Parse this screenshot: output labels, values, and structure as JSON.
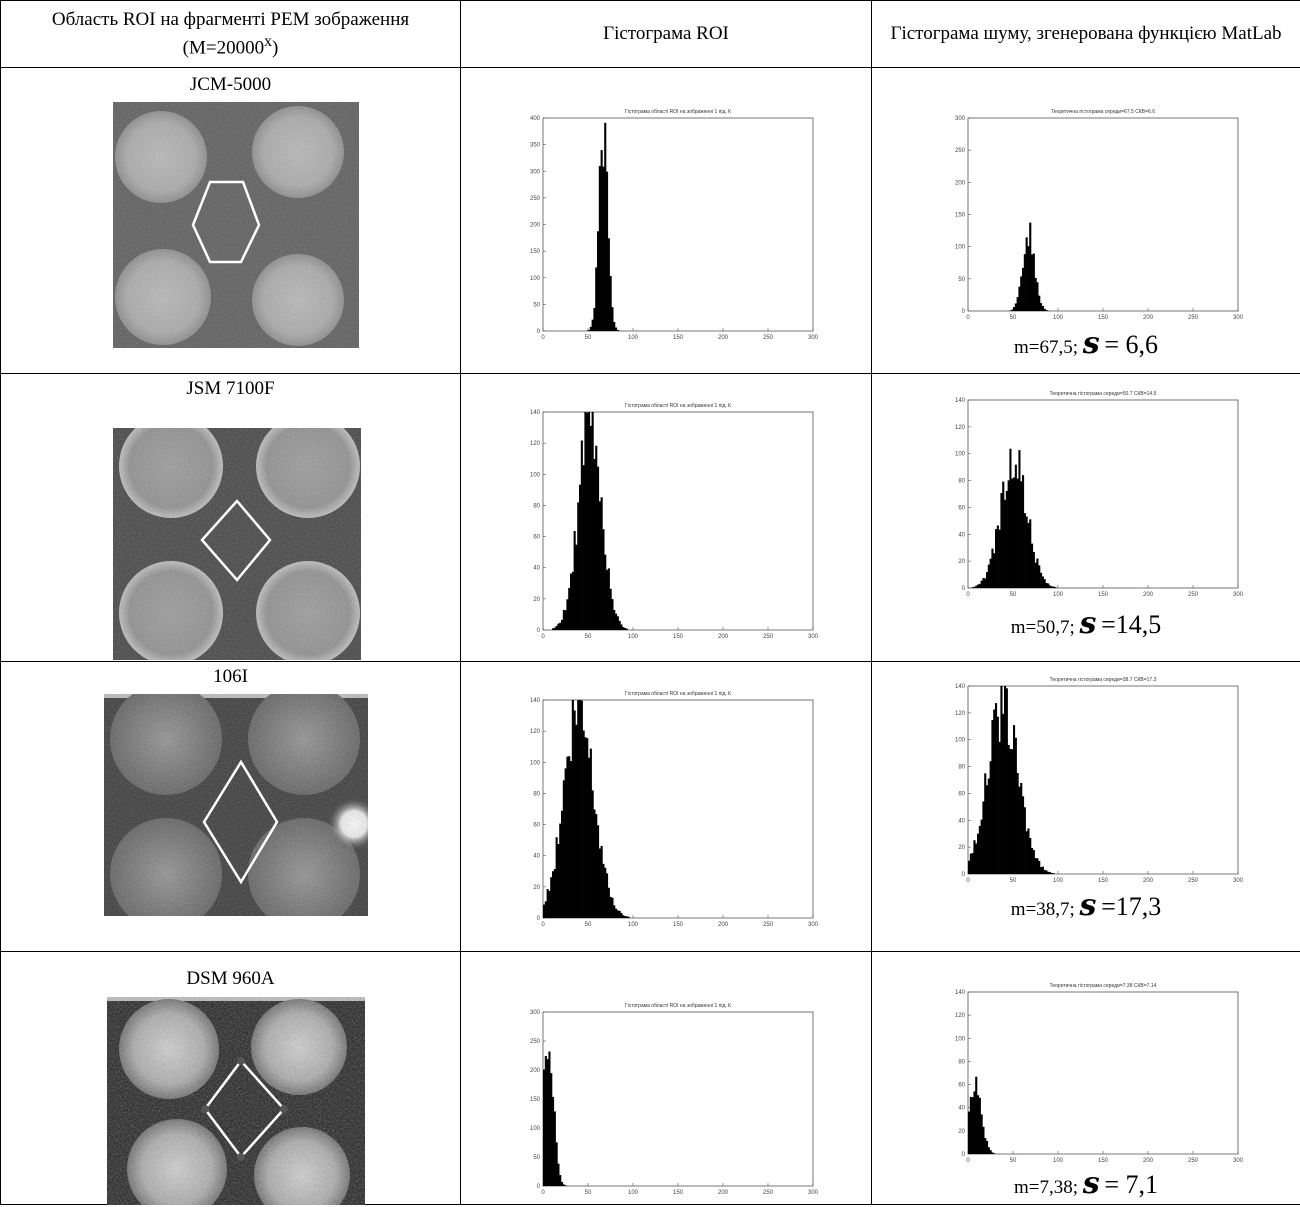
{
  "header": {
    "col1": "Область ROI на фрагменті РЕМ зображення (М=20000",
    "col1_sup": "х",
    "col1_end": ")",
    "col2": "Гістограма ROI",
    "col3": "Гістограма шуму, згенерована функцією MatLab"
  },
  "rows": [
    {
      "instrument": "JCM-5000",
      "roi_hist": {
        "title": "Гістограма області ROI на зображенні 1 під. К",
        "yticks": [
          "0",
          "50",
          "100",
          "150",
          "200",
          "250",
          "300",
          "350",
          "400"
        ],
        "xticks": [
          "0",
          "50",
          "100",
          "150",
          "200",
          "250",
          "300"
        ],
        "peak": 67,
        "sigma": 5,
        "ymax": 400,
        "yscale": 365
      },
      "noise_hist": {
        "title": "Теоретична гістограма середи=67.5 СКВ=6.6",
        "yticks": [
          "0",
          "50",
          "100",
          "150",
          "200",
          "250",
          "300"
        ],
        "xticks": [
          "0",
          "50",
          "100",
          "150",
          "200",
          "250",
          "300"
        ],
        "peak": 67.5,
        "sigma": 6.6,
        "ymax": 300,
        "yscale": 120
      },
      "m": "m=67,5;",
      "s_value": "= 6,6"
    },
    {
      "instrument": "JSM 7100F",
      "roi_hist": {
        "title": "Гістограма області ROI на зображенні 1 під. К",
        "yticks": [
          "0",
          "20",
          "40",
          "60",
          "80",
          "100",
          "120",
          "140"
        ],
        "xticks": [
          "0",
          "50",
          "100",
          "150",
          "200",
          "250",
          "300"
        ],
        "peak": 52,
        "sigma": 13,
        "ymax": 140,
        "yscale": 130
      },
      "noise_hist": {
        "title": "Теоретична гістограма середи=50.7 СКВ=14.5",
        "yticks": [
          "0",
          "20",
          "40",
          "60",
          "80",
          "100",
          "120",
          "140"
        ],
        "xticks": [
          "0",
          "50",
          "100",
          "150",
          "200",
          "250",
          "300"
        ],
        "peak": 50.7,
        "sigma": 14.5,
        "ymax": 140,
        "yscale": 95
      },
      "m": "m=50,7;",
      "s_value": "=14,5"
    },
    {
      "instrument": "106I",
      "roi_hist": {
        "title": "Гістограма області ROI на зображенні 1 під. К",
        "yticks": [
          "0",
          "20",
          "40",
          "60",
          "80",
          "100",
          "120",
          "140"
        ],
        "xticks": [
          "0",
          "50",
          "100",
          "150",
          "200",
          "250",
          "300"
        ],
        "peak": 40,
        "sigma": 17,
        "ymax": 140,
        "yscale": 130
      },
      "noise_hist": {
        "title": "Теоретична гістограма середи=38.7 СКВ=17.3",
        "yticks": [
          "0",
          "20",
          "40",
          "60",
          "80",
          "100",
          "120",
          "140"
        ],
        "xticks": [
          "0",
          "50",
          "100",
          "150",
          "200",
          "250",
          "300"
        ],
        "peak": 38.7,
        "sigma": 17.3,
        "ymax": 140,
        "yscale": 122
      },
      "m": "m=38,7;",
      "s_value": "=17,3"
    },
    {
      "instrument": "DSM 960A",
      "roi_hist": {
        "title": "Гістограма області ROI на зображенні 1 під. К",
        "yticks": [
          "0",
          "50",
          "100",
          "150",
          "200",
          "250",
          "300"
        ],
        "xticks": [
          "0",
          "50",
          "100",
          "150",
          "200",
          "250",
          "300"
        ],
        "peak": 5,
        "sigma": 6,
        "ymax": 300,
        "yscale": 265
      },
      "noise_hist": {
        "title": "Теоретична гістограма середи=7.38 СКВ=7.14",
        "yticks": [
          "0",
          "20",
          "40",
          "60",
          "80",
          "100",
          "120",
          "140"
        ],
        "xticks": [
          "0",
          "50",
          "100",
          "150",
          "200",
          "250",
          "300"
        ],
        "peak": 7.38,
        "sigma": 7.1,
        "ymax": 140,
        "yscale": 62
      },
      "m": "m=7,38;",
      "s_value": "= 7,1"
    }
  ],
  "sigma_symbol": "s"
}
